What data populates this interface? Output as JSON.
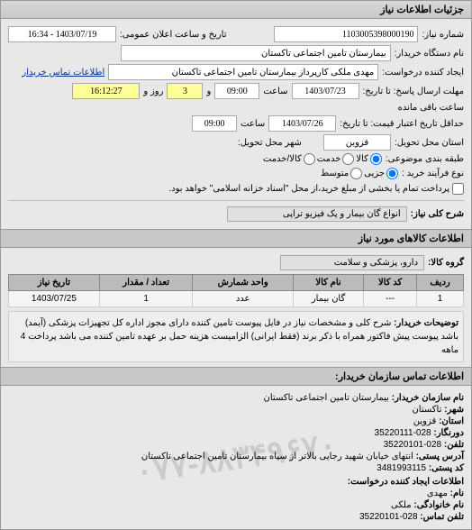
{
  "panel": {
    "title": "جزئیات اطلاعات نیاز"
  },
  "header": {
    "req_no_label": "شماره نیاز:",
    "req_no": "1103005398000190",
    "announce_label": "تاریخ و ساعت اعلان عمومی:",
    "announce_value": "1403/07/19 - 16:34",
    "buyer_org_label": "نام دستگاه خریدار:",
    "buyer_org": "بیمارستان تامین اجتماعی تاکستان",
    "creator_label": "ایجاد کننده درخواست:",
    "creator": "مهدی ملکی کارپرداز بیمارستان تامین اجتماعی تاکستان",
    "contact_link": "اطلاعات تماس خریدار",
    "deadline_label": "مهلت ارسال پاسخ: تا تاریخ:",
    "deadline_date": "1403/07/23",
    "time_label": "ساعت",
    "deadline_time": "09:00",
    "countdown_and": "و",
    "countdown_days": "3",
    "countdown_days_label": "روز و",
    "countdown_time": "16:12:27",
    "countdown_suffix": "ساعت باقی مانده",
    "valid_label": "حداقل تاریخ اعتبار قیمت: تا تاریخ:",
    "valid_date": "1403/07/26",
    "valid_time": "09:00",
    "province_label": "استان محل تحویل:",
    "province": "قزوین",
    "city_label": "شهر محل تحویل:",
    "category_label": "طبقه بندی موضوعی:",
    "cat_goods": "کالا",
    "cat_service": "خدمت",
    "cat_both": "کالا/خدمت",
    "process_label": "نوع فرآیند خرید :",
    "proc_small": "جزیی",
    "proc_medium": "متوسط",
    "proc_note_cb": "پرداخت تمام یا بخشی از مبلغ خرید،از محل \"اسناد خزانه اسلامی\" خواهد بود."
  },
  "need": {
    "title_label": "شرح کلی نیاز:",
    "title": "انواع گان بیمار و پک فیزیو تراپی"
  },
  "goods_section": "اطلاعات کالاهای مورد نیاز",
  "group_label": "گروه کالا:",
  "group_value": "دارو، پزشکی و سلامت",
  "table": {
    "columns": [
      "ردیف",
      "کد کالا",
      "نام کالا",
      "واحد شمارش",
      "تعداد / مقدار",
      "تاریخ نیاز"
    ],
    "rows": [
      [
        "1",
        "---",
        "گان بیمار",
        "عدد",
        "1",
        "1403/07/25"
      ]
    ]
  },
  "desc": {
    "label": "توضیحات خریدار:",
    "text": "شرح کلی و مشخصات نیاز در فایل پیوست تامین کننده دارای مجوز اداره کل تجهیزات پزشکی (آیمد) باشد پیوست پیش فاکتور همراه با ذکر برند (فقط ایرانی) الزامیست هزینه حمل بر عهده تامین کننده می باشد پرداخت 4 ماهه"
  },
  "contact": {
    "section_title": "اطلاعات تماس سازمان خریدار:",
    "org_label": "نام سازمان خریدار:",
    "org": "بیمارستان تامین اجتماعی تاکستان",
    "city_label": "شهر:",
    "city": "تاکستان",
    "province_label": "استان:",
    "province": "قزوین",
    "fax_label": "دورنگار:",
    "fax": "028-35220111",
    "phone_label": "تلفن:",
    "phone": "028-35220101",
    "address_label": "آدرس پستی:",
    "address": "انتهای خیابان شهید رجایی بالاتر از سپاه بیمارستان تامین اجتماعی تاکستان",
    "postcode_label": "کد پستی:",
    "postcode": "3481993115",
    "creator_section": "اطلاعات ایجاد کننده درخواست:",
    "name_label": "نام:",
    "name": "مهدی",
    "lname_label": "نام خانوادگی:",
    "lname": "ملکی",
    "cphone_label": "تلفن تماس:",
    "cphone": "028-35220101"
  },
  "watermark": "۰۷۷-۸۸۳۴۹۶۷۰"
}
